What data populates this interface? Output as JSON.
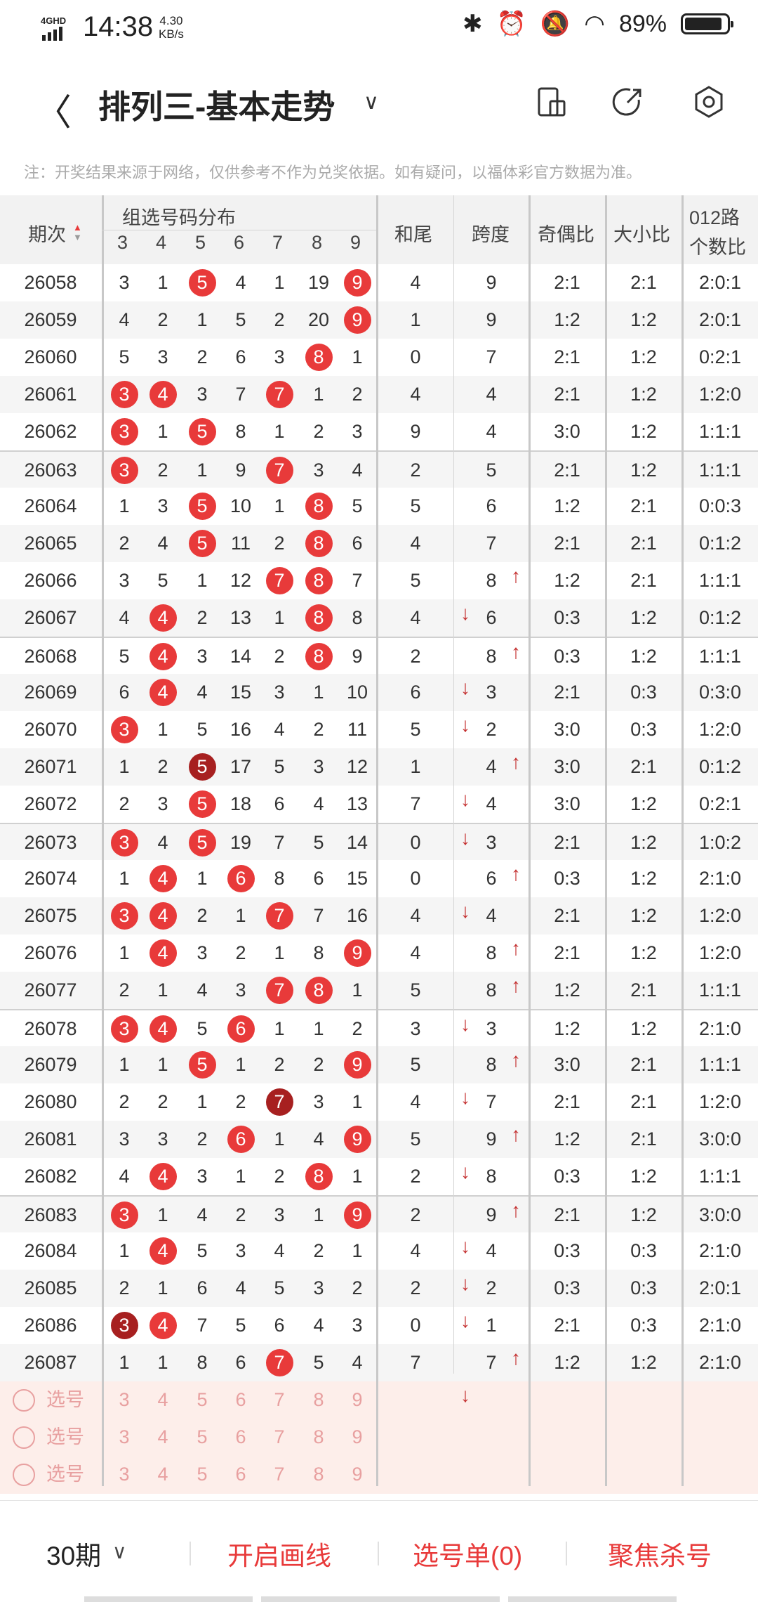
{
  "status": {
    "network": "4GHD",
    "time": "14:38",
    "speed_value": "4.30",
    "speed_unit": "KB/s",
    "battery": "89%"
  },
  "titlebar": {
    "title": "排列三-基本走势"
  },
  "notice": "注：开奖结果来源于网络，仅供参考不作为兑奖依据。如有疑问，以福体彩官方数据为准。",
  "table": {
    "headers": {
      "period": "期次",
      "group": "组选号码分布",
      "digits": [
        "3",
        "4",
        "5",
        "6",
        "7",
        "8",
        "9"
      ],
      "sum_tail": "和尾",
      "span": "跨度",
      "odd_even": "奇偶比",
      "big_small": "大小比",
      "route_line1": "012路",
      "route_line2": "个数比"
    },
    "rows": [
      {
        "p": "26058",
        "c": [
          [
            "3",
            0
          ],
          [
            "1",
            0
          ],
          [
            "5",
            1
          ],
          [
            "4",
            0
          ],
          [
            "1",
            0
          ],
          [
            "19",
            0
          ],
          [
            "9",
            1
          ]
        ],
        "tail": "4",
        "span": "9",
        "arrow": "",
        "oe": "2:1",
        "bs": "2:1",
        "r": "2:0:1"
      },
      {
        "p": "26059",
        "c": [
          [
            "4",
            0
          ],
          [
            "2",
            0
          ],
          [
            "1",
            0
          ],
          [
            "5",
            0
          ],
          [
            "2",
            0
          ],
          [
            "20",
            0
          ],
          [
            "9",
            1
          ]
        ],
        "tail": "1",
        "span": "9",
        "arrow": "",
        "oe": "1:2",
        "bs": "1:2",
        "r": "2:0:1"
      },
      {
        "p": "26060",
        "c": [
          [
            "5",
            0
          ],
          [
            "3",
            0
          ],
          [
            "2",
            0
          ],
          [
            "6",
            0
          ],
          [
            "3",
            0
          ],
          [
            "8",
            1
          ],
          [
            "1",
            0
          ]
        ],
        "tail": "0",
        "span": "7",
        "arrow": "",
        "oe": "2:1",
        "bs": "1:2",
        "r": "0:2:1"
      },
      {
        "p": "26061",
        "c": [
          [
            "3",
            1
          ],
          [
            "4",
            1
          ],
          [
            "3",
            0
          ],
          [
            "7",
            0
          ],
          [
            "7",
            1
          ],
          [
            "1",
            0
          ],
          [
            "2",
            0
          ]
        ],
        "tail": "4",
        "span": "4",
        "arrow": "",
        "oe": "2:1",
        "bs": "1:2",
        "r": "1:2:0"
      },
      {
        "p": "26062",
        "c": [
          [
            "3",
            1
          ],
          [
            "1",
            0
          ],
          [
            "5",
            1
          ],
          [
            "8",
            0
          ],
          [
            "1",
            0
          ],
          [
            "2",
            0
          ],
          [
            "3",
            0
          ]
        ],
        "tail": "9",
        "span": "4",
        "arrow": "",
        "oe": "3:0",
        "bs": "1:2",
        "r": "1:1:1"
      },
      {
        "p": "26063",
        "c": [
          [
            "3",
            1
          ],
          [
            "2",
            0
          ],
          [
            "1",
            0
          ],
          [
            "9",
            0
          ],
          [
            "7",
            1
          ],
          [
            "3",
            0
          ],
          [
            "4",
            0
          ]
        ],
        "tail": "2",
        "span": "5",
        "arrow": "",
        "oe": "2:1",
        "bs": "1:2",
        "r": "1:1:1"
      },
      {
        "p": "26064",
        "c": [
          [
            "1",
            0
          ],
          [
            "3",
            0
          ],
          [
            "5",
            1
          ],
          [
            "10",
            0
          ],
          [
            "1",
            0
          ],
          [
            "8",
            1
          ],
          [
            "5",
            0
          ]
        ],
        "tail": "5",
        "span": "6",
        "arrow": "",
        "oe": "1:2",
        "bs": "2:1",
        "r": "0:0:3"
      },
      {
        "p": "26065",
        "c": [
          [
            "2",
            0
          ],
          [
            "4",
            0
          ],
          [
            "5",
            1
          ],
          [
            "11",
            0
          ],
          [
            "2",
            0
          ],
          [
            "8",
            1
          ],
          [
            "6",
            0
          ]
        ],
        "tail": "4",
        "span": "7",
        "arrow": "",
        "oe": "2:1",
        "bs": "2:1",
        "r": "0:1:2"
      },
      {
        "p": "26066",
        "c": [
          [
            "3",
            0
          ],
          [
            "5",
            0
          ],
          [
            "1",
            0
          ],
          [
            "12",
            0
          ],
          [
            "7",
            1
          ],
          [
            "8",
            1
          ],
          [
            "7",
            0
          ]
        ],
        "tail": "5",
        "span": "8",
        "arrow": "up",
        "oe": "1:2",
        "bs": "2:1",
        "r": "1:1:1"
      },
      {
        "p": "26067",
        "c": [
          [
            "4",
            0
          ],
          [
            "4",
            1
          ],
          [
            "2",
            0
          ],
          [
            "13",
            0
          ],
          [
            "1",
            0
          ],
          [
            "8",
            1
          ],
          [
            "8",
            0
          ]
        ],
        "tail": "4",
        "span": "6",
        "arrow": "down",
        "oe": "0:3",
        "bs": "1:2",
        "r": "0:1:2"
      },
      {
        "p": "26068",
        "c": [
          [
            "5",
            0
          ],
          [
            "4",
            1
          ],
          [
            "3",
            0
          ],
          [
            "14",
            0
          ],
          [
            "2",
            0
          ],
          [
            "8",
            1
          ],
          [
            "9",
            0
          ]
        ],
        "tail": "2",
        "span": "8",
        "arrow": "up",
        "oe": "0:3",
        "bs": "1:2",
        "r": "1:1:1"
      },
      {
        "p": "26069",
        "c": [
          [
            "6",
            0
          ],
          [
            "4",
            1
          ],
          [
            "4",
            0
          ],
          [
            "15",
            0
          ],
          [
            "3",
            0
          ],
          [
            "1",
            0
          ],
          [
            "10",
            0
          ]
        ],
        "tail": "6",
        "span": "3",
        "arrow": "down",
        "oe": "2:1",
        "bs": "0:3",
        "r": "0:3:0"
      },
      {
        "p": "26070",
        "c": [
          [
            "3",
            1
          ],
          [
            "1",
            0
          ],
          [
            "5",
            0
          ],
          [
            "16",
            0
          ],
          [
            "4",
            0
          ],
          [
            "2",
            0
          ],
          [
            "11",
            0
          ]
        ],
        "tail": "5",
        "span": "2",
        "arrow": "down",
        "oe": "3:0",
        "bs": "0:3",
        "r": "1:2:0"
      },
      {
        "p": "26071",
        "c": [
          [
            "1",
            0
          ],
          [
            "2",
            0
          ],
          [
            "5",
            2
          ],
          [
            "17",
            0
          ],
          [
            "5",
            0
          ],
          [
            "3",
            0
          ],
          [
            "12",
            0
          ]
        ],
        "tail": "1",
        "span": "4",
        "arrow": "up",
        "oe": "3:0",
        "bs": "2:1",
        "r": "0:1:2"
      },
      {
        "p": "26072",
        "c": [
          [
            "2",
            0
          ],
          [
            "3",
            0
          ],
          [
            "5",
            1
          ],
          [
            "18",
            0
          ],
          [
            "6",
            0
          ],
          [
            "4",
            0
          ],
          [
            "13",
            0
          ]
        ],
        "tail": "7",
        "span": "4",
        "arrow": "down",
        "oe": "3:0",
        "bs": "1:2",
        "r": "0:2:1"
      },
      {
        "p": "26073",
        "c": [
          [
            "3",
            1
          ],
          [
            "4",
            0
          ],
          [
            "5",
            1
          ],
          [
            "19",
            0
          ],
          [
            "7",
            0
          ],
          [
            "5",
            0
          ],
          [
            "14",
            0
          ]
        ],
        "tail": "0",
        "span": "3",
        "arrow": "down",
        "oe": "2:1",
        "bs": "1:2",
        "r": "1:0:2"
      },
      {
        "p": "26074",
        "c": [
          [
            "1",
            0
          ],
          [
            "4",
            1
          ],
          [
            "1",
            0
          ],
          [
            "6",
            1
          ],
          [
            "8",
            0
          ],
          [
            "6",
            0
          ],
          [
            "15",
            0
          ]
        ],
        "tail": "0",
        "span": "6",
        "arrow": "up",
        "oe": "0:3",
        "bs": "1:2",
        "r": "2:1:0"
      },
      {
        "p": "26075",
        "c": [
          [
            "3",
            1
          ],
          [
            "4",
            1
          ],
          [
            "2",
            0
          ],
          [
            "1",
            0
          ],
          [
            "7",
            1
          ],
          [
            "7",
            0
          ],
          [
            "16",
            0
          ]
        ],
        "tail": "4",
        "span": "4",
        "arrow": "down",
        "oe": "2:1",
        "bs": "1:2",
        "r": "1:2:0"
      },
      {
        "p": "26076",
        "c": [
          [
            "1",
            0
          ],
          [
            "4",
            1
          ],
          [
            "3",
            0
          ],
          [
            "2",
            0
          ],
          [
            "1",
            0
          ],
          [
            "8",
            0
          ],
          [
            "9",
            1
          ]
        ],
        "tail": "4",
        "span": "8",
        "arrow": "up",
        "oe": "2:1",
        "bs": "1:2",
        "r": "1:2:0"
      },
      {
        "p": "26077",
        "c": [
          [
            "2",
            0
          ],
          [
            "1",
            0
          ],
          [
            "4",
            0
          ],
          [
            "3",
            0
          ],
          [
            "7",
            1
          ],
          [
            "8",
            1
          ],
          [
            "1",
            0
          ]
        ],
        "tail": "5",
        "span": "8",
        "arrow": "up",
        "oe": "1:2",
        "bs": "2:1",
        "r": "1:1:1"
      },
      {
        "p": "26078",
        "c": [
          [
            "3",
            1
          ],
          [
            "4",
            1
          ],
          [
            "5",
            0
          ],
          [
            "6",
            1
          ],
          [
            "1",
            0
          ],
          [
            "1",
            0
          ],
          [
            "2",
            0
          ]
        ],
        "tail": "3",
        "span": "3",
        "arrow": "down",
        "oe": "1:2",
        "bs": "1:2",
        "r": "2:1:0"
      },
      {
        "p": "26079",
        "c": [
          [
            "1",
            0
          ],
          [
            "1",
            0
          ],
          [
            "5",
            1
          ],
          [
            "1",
            0
          ],
          [
            "2",
            0
          ],
          [
            "2",
            0
          ],
          [
            "9",
            1
          ]
        ],
        "tail": "5",
        "span": "8",
        "arrow": "up",
        "oe": "3:0",
        "bs": "2:1",
        "r": "1:1:1"
      },
      {
        "p": "26080",
        "c": [
          [
            "2",
            0
          ],
          [
            "2",
            0
          ],
          [
            "1",
            0
          ],
          [
            "2",
            0
          ],
          [
            "7",
            2
          ],
          [
            "3",
            0
          ],
          [
            "1",
            0
          ]
        ],
        "tail": "4",
        "span": "7",
        "arrow": "down",
        "oe": "2:1",
        "bs": "2:1",
        "r": "1:2:0"
      },
      {
        "p": "26081",
        "c": [
          [
            "3",
            0
          ],
          [
            "3",
            0
          ],
          [
            "2",
            0
          ],
          [
            "6",
            1
          ],
          [
            "1",
            0
          ],
          [
            "4",
            0
          ],
          [
            "9",
            1
          ]
        ],
        "tail": "5",
        "span": "9",
        "arrow": "up",
        "oe": "1:2",
        "bs": "2:1",
        "r": "3:0:0"
      },
      {
        "p": "26082",
        "c": [
          [
            "4",
            0
          ],
          [
            "4",
            1
          ],
          [
            "3",
            0
          ],
          [
            "1",
            0
          ],
          [
            "2",
            0
          ],
          [
            "8",
            1
          ],
          [
            "1",
            0
          ]
        ],
        "tail": "2",
        "span": "8",
        "arrow": "down",
        "oe": "0:3",
        "bs": "1:2",
        "r": "1:1:1"
      },
      {
        "p": "26083",
        "c": [
          [
            "3",
            1
          ],
          [
            "1",
            0
          ],
          [
            "4",
            0
          ],
          [
            "2",
            0
          ],
          [
            "3",
            0
          ],
          [
            "1",
            0
          ],
          [
            "9",
            1
          ]
        ],
        "tail": "2",
        "span": "9",
        "arrow": "up",
        "oe": "2:1",
        "bs": "1:2",
        "r": "3:0:0"
      },
      {
        "p": "26084",
        "c": [
          [
            "1",
            0
          ],
          [
            "4",
            1
          ],
          [
            "5",
            0
          ],
          [
            "3",
            0
          ],
          [
            "4",
            0
          ],
          [
            "2",
            0
          ],
          [
            "1",
            0
          ]
        ],
        "tail": "4",
        "span": "4",
        "arrow": "down",
        "oe": "0:3",
        "bs": "0:3",
        "r": "2:1:0"
      },
      {
        "p": "26085",
        "c": [
          [
            "2",
            0
          ],
          [
            "1",
            0
          ],
          [
            "6",
            0
          ],
          [
            "4",
            0
          ],
          [
            "5",
            0
          ],
          [
            "3",
            0
          ],
          [
            "2",
            0
          ]
        ],
        "tail": "2",
        "span": "2",
        "arrow": "down",
        "oe": "0:3",
        "bs": "0:3",
        "r": "2:0:1"
      },
      {
        "p": "26086",
        "c": [
          [
            "3",
            2
          ],
          [
            "4",
            1
          ],
          [
            "7",
            0
          ],
          [
            "5",
            0
          ],
          [
            "6",
            0
          ],
          [
            "4",
            0
          ],
          [
            "3",
            0
          ]
        ],
        "tail": "0",
        "span": "1",
        "arrow": "down",
        "oe": "2:1",
        "bs": "0:3",
        "r": "2:1:0"
      },
      {
        "p": "26087",
        "c": [
          [
            "1",
            0
          ],
          [
            "1",
            0
          ],
          [
            "8",
            0
          ],
          [
            "6",
            0
          ],
          [
            "7",
            1
          ],
          [
            "5",
            0
          ],
          [
            "4",
            0
          ]
        ],
        "tail": "7",
        "span": "7",
        "arrow": "up",
        "oe": "1:2",
        "bs": "1:2",
        "r": "2:1:0"
      }
    ],
    "select_rows": [
      {
        "label": "选号",
        "digits": [
          "3",
          "4",
          "5",
          "6",
          "7",
          "8",
          "9"
        ]
      },
      {
        "label": "选号",
        "digits": [
          "3",
          "4",
          "5",
          "6",
          "7",
          "8",
          "9"
        ]
      },
      {
        "label": "选号",
        "digits": [
          "3",
          "4",
          "5",
          "6",
          "7",
          "8",
          "9"
        ]
      }
    ]
  },
  "bottom": {
    "period": "30期",
    "draw_line": "开启画线",
    "selection": "选号单(0)",
    "focus_kill": "聚焦杀号"
  },
  "colors": {
    "accent": "#e83a3a",
    "accent_dark": "#a72020",
    "select_bg": "#fdeeea"
  }
}
